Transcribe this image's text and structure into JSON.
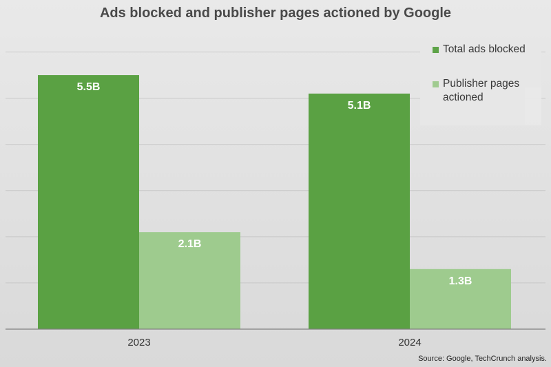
{
  "title": "Ads blocked and publisher pages actioned by Google",
  "source": "Source: Google, TechCrunch analysis.",
  "colors": {
    "series1": "#5aa143",
    "series2": "#9ecb8e",
    "axis": "#808080",
    "grid": "#c7c7c7"
  },
  "chart_data": {
    "type": "bar",
    "title": "Ads blocked and publisher pages actioned by Google",
    "categories": [
      "2023",
      "2024"
    ],
    "series": [
      {
        "name": "Total ads blocked",
        "values": [
          5.5,
          5.1
        ],
        "labels": [
          "5.5B",
          "5.1B"
        ]
      },
      {
        "name": "Publisher pages actioned",
        "values": [
          2.1,
          1.3
        ],
        "labels": [
          "2.1B",
          "1.3B"
        ]
      }
    ],
    "ylim": [
      0,
      6.5
    ],
    "grid": true,
    "legend": "top-right"
  }
}
